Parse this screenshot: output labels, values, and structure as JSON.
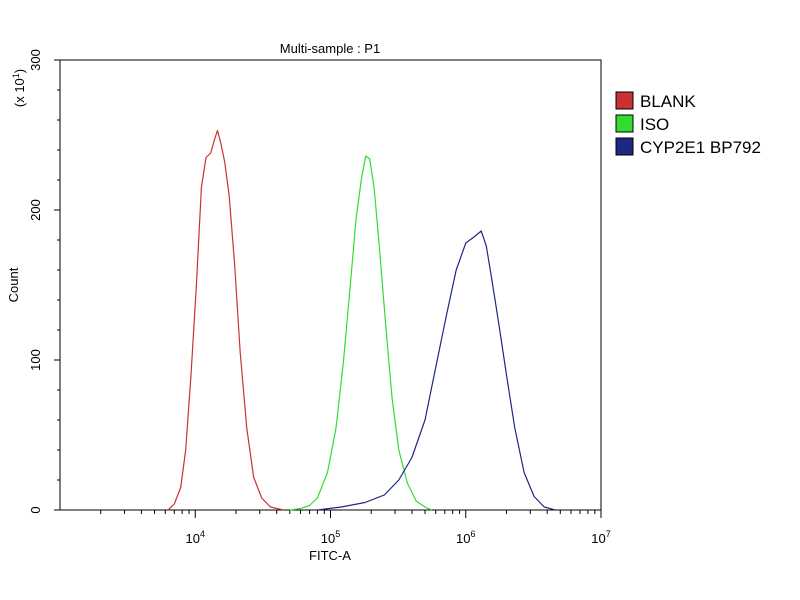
{
  "chart_data": {
    "type": "line",
    "title": "Multi-sample : P1",
    "xlabel": "FITC-A",
    "ylabel": "Count",
    "y_multiplier_label": "(x 10",
    "y_multiplier_exp": "1",
    "y_multiplier_close": ")",
    "xscale": "log",
    "xlim": [
      1000,
      10000000
    ],
    "ylim": [
      0,
      300
    ],
    "grid": false,
    "legend_position": "right",
    "x_ticks": [
      {
        "value": 10000,
        "base": "10",
        "exp": "4"
      },
      {
        "value": 100000,
        "base": "10",
        "exp": "5"
      },
      {
        "value": 1000000,
        "base": "10",
        "exp": "6"
      },
      {
        "value": 10000000,
        "base": "10",
        "exp": "7"
      }
    ],
    "y_ticks": [
      {
        "value": 0,
        "label": "0"
      },
      {
        "value": 100,
        "label": "100"
      },
      {
        "value": 200,
        "label": "200"
      },
      {
        "value": 300,
        "label": "300"
      }
    ],
    "series": [
      {
        "name": "BLANK",
        "color": "#c83232",
        "x": [
          6300,
          7000,
          7800,
          8500,
          9300,
          10200,
          11100,
          12000,
          13000,
          14000,
          14600,
          15500,
          16500,
          17800,
          19500,
          21500,
          24000,
          27000,
          31000,
          36000,
          45000
        ],
        "y": [
          0,
          4,
          15,
          40,
          90,
          150,
          215,
          235,
          238,
          248,
          253,
          244,
          232,
          210,
          165,
          105,
          55,
          22,
          8,
          2,
          0
        ]
      },
      {
        "name": "ISO",
        "color": "#32dc32",
        "x": [
          50000,
          60000,
          70000,
          80000,
          95000,
          110000,
          125000,
          140000,
          155000,
          170000,
          182000,
          195000,
          210000,
          230000,
          255000,
          285000,
          320000,
          370000,
          430000,
          500000,
          560000
        ],
        "y": [
          0,
          1,
          3,
          8,
          25,
          55,
          100,
          150,
          195,
          222,
          236,
          234,
          215,
          175,
          125,
          75,
          40,
          18,
          6,
          2,
          0
        ]
      },
      {
        "name": "CYP2E1 BP792",
        "color": "#1e2882",
        "x": [
          80000,
          120000,
          180000,
          250000,
          320000,
          400000,
          500000,
          600000,
          720000,
          850000,
          1000000,
          1150000,
          1300000,
          1420000,
          1550000,
          1750000,
          2000000,
          2300000,
          2700000,
          3200000,
          3800000,
          4600000
        ],
        "y": [
          0,
          2,
          5,
          10,
          20,
          35,
          60,
          95,
          130,
          160,
          178,
          182,
          186,
          176,
          155,
          125,
          90,
          55,
          25,
          9,
          2,
          0
        ]
      }
    ]
  }
}
